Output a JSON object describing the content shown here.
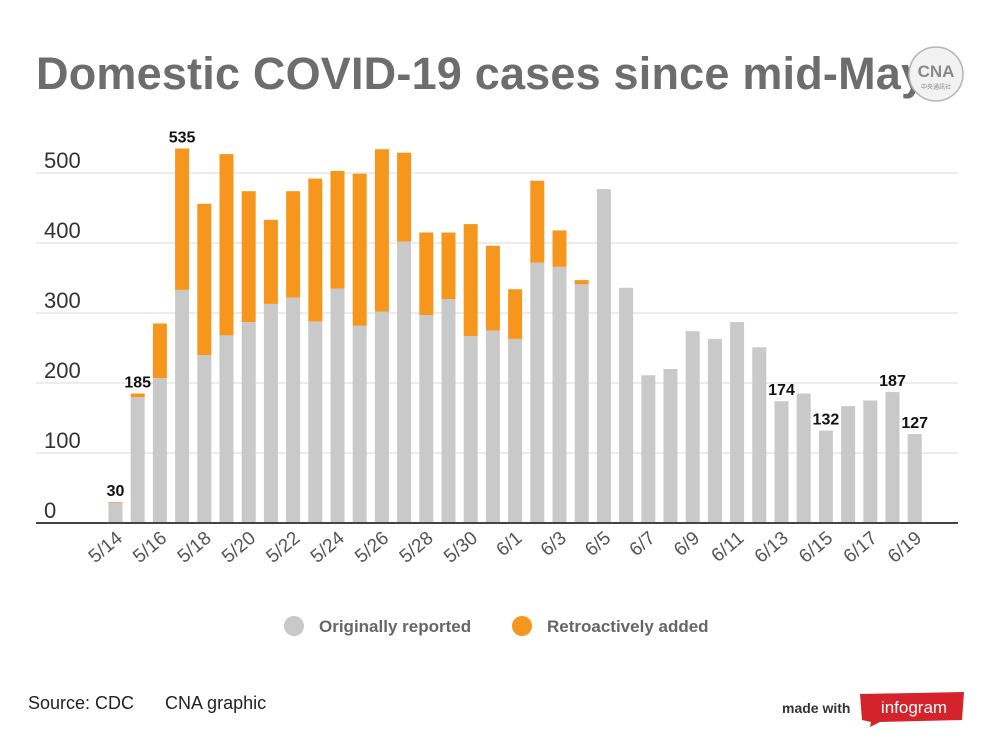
{
  "header": {
    "title": "Domestic COVID-19 cases since mid-May",
    "logo_text": "CNA",
    "logo_subtext": "中央通訊社"
  },
  "footer": {
    "source": "Source: CDC",
    "credit": "CNA graphic",
    "made_with": "made with",
    "brand": "infogram"
  },
  "colors": {
    "original": "#c9c9c9",
    "retro": "#f7961d",
    "axis": "#444444",
    "grid": "#e2e2e2",
    "title": "#6d6d6d"
  },
  "chart_data": {
    "type": "bar",
    "stacked": true,
    "title": "Domestic COVID-19 cases since mid-May",
    "categories": [
      "5/14",
      "5/15",
      "5/16",
      "5/17",
      "5/18",
      "5/19",
      "5/20",
      "5/21",
      "5/22",
      "5/23",
      "5/24",
      "5/25",
      "5/26",
      "5/27",
      "5/28",
      "5/29",
      "5/30",
      "5/31",
      "6/1",
      "6/2",
      "6/3",
      "6/4",
      "6/5",
      "6/6",
      "6/7",
      "6/8",
      "6/9",
      "6/10",
      "6/11",
      "6/12",
      "6/13",
      "6/14",
      "6/15",
      "6/16",
      "6/17",
      "6/18",
      "6/19"
    ],
    "x_tick_labels": [
      "5/14",
      "5/16",
      "5/18",
      "5/20",
      "5/22",
      "5/24",
      "5/26",
      "5/28",
      "5/30",
      "6/1",
      "6/3",
      "6/5",
      "6/7",
      "6/9",
      "6/11",
      "6/13",
      "6/15",
      "6/17",
      "6/19"
    ],
    "series": [
      {
        "name": "Originally reported",
        "color": "#c9c9c9",
        "values": [
          29,
          180,
          207,
          333,
          240,
          268,
          287,
          313,
          322,
          288,
          335,
          282,
          302,
          402,
          297,
          320,
          267,
          275,
          263,
          372,
          366,
          341,
          477,
          336,
          211,
          220,
          274,
          263,
          287,
          251,
          174,
          185,
          132,
          167,
          175,
          187,
          127
        ]
      },
      {
        "name": "Retroactively added",
        "color": "#f7961d",
        "values": [
          1,
          5,
          78,
          202,
          216,
          259,
          187,
          120,
          152,
          204,
          168,
          217,
          232,
          127,
          118,
          95,
          160,
          121,
          71,
          117,
          52,
          6,
          0,
          0,
          0,
          0,
          0,
          0,
          0,
          0,
          0,
          0,
          0,
          0,
          0,
          0,
          0
        ]
      }
    ],
    "data_labels": [
      {
        "category": "5/14",
        "value": 30
      },
      {
        "category": "5/15",
        "value": 185
      },
      {
        "category": "5/17",
        "value": 535
      },
      {
        "category": "6/13",
        "value": 174
      },
      {
        "category": "6/15",
        "value": 132
      },
      {
        "category": "6/18",
        "value": 187
      },
      {
        "category": "6/19",
        "value": 127
      }
    ],
    "y_ticks": [
      0,
      100,
      200,
      300,
      400,
      500
    ],
    "ylim": [
      0,
      550
    ],
    "grid": true,
    "legend_position": "bottom"
  }
}
